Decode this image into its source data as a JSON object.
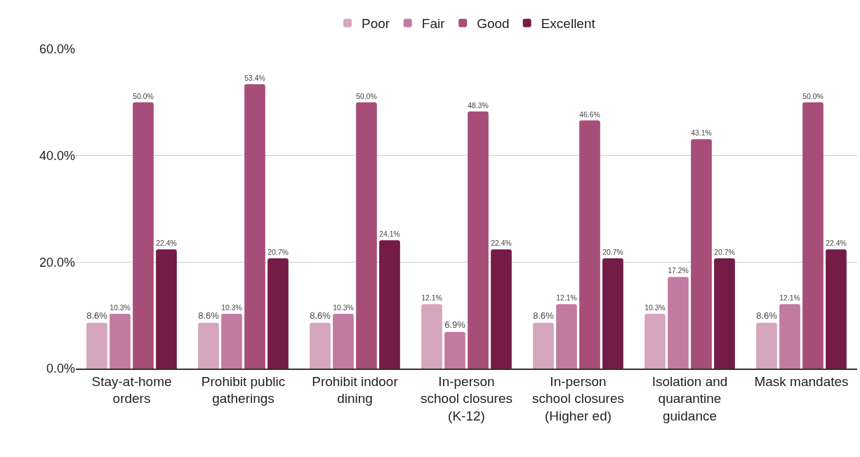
{
  "chart_data": {
    "type": "bar",
    "categories": [
      "Stay-at-home orders",
      "Prohibit public gatherings",
      "Prohibit indoor dining",
      "In-person school closures (K-12)",
      "In-person school closures (Higher ed)",
      "Isolation and quarantine guidance",
      "Mask mandates"
    ],
    "series": [
      {
        "name": "Poor",
        "color": "#d5a6bd",
        "values": [
          8.6,
          8.6,
          8.6,
          12.1,
          8.6,
          10.3,
          8.6
        ],
        "value_labels": [
          "8.6%",
          "8.6%",
          "8.6%",
          "12.1%",
          "8.6%",
          "10.3%",
          "8.6%"
        ]
      },
      {
        "name": "Fair",
        "color": "#c27ba0",
        "values": [
          10.3,
          10.3,
          10.3,
          6.9,
          12.1,
          17.2,
          12.1
        ],
        "value_labels": [
          "10.3%",
          "10.3%",
          "10.3%",
          "6.9%",
          "12.1%",
          "17.2%",
          "12.1%"
        ]
      },
      {
        "name": "Good",
        "color": "#a64d79",
        "values": [
          50.0,
          53.4,
          50.0,
          48.3,
          46.6,
          43.1,
          50.0
        ],
        "value_labels": [
          "50.0%",
          "53.4%",
          "50.0%",
          "48.3%",
          "46.6%",
          "43.1%",
          "50.0%"
        ]
      },
      {
        "name": "Excellent",
        "color": "#741b47",
        "values": [
          22.4,
          20.7,
          24.1,
          22.4,
          20.7,
          20.7,
          22.4
        ],
        "value_labels": [
          "22.4%",
          "20.7%",
          "24.1%",
          "22.4%",
          "20.7%",
          "20.7%",
          "22.4%"
        ]
      }
    ],
    "ylim": [
      0,
      60
    ],
    "yticks": [
      {
        "value": 0,
        "label": "0.0%"
      },
      {
        "value": 20,
        "label": "20.0%"
      },
      {
        "value": 40,
        "label": "40.0%"
      },
      {
        "value": 60,
        "label": "60.0%"
      }
    ],
    "grid": "y",
    "legend": "top"
  }
}
